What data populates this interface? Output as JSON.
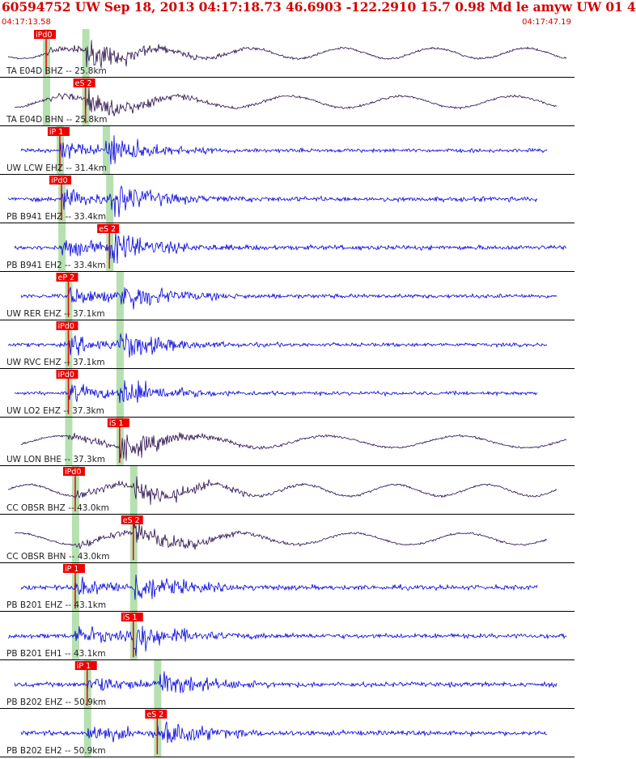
{
  "header": {
    "title": "60594752 UW Sep 18, 2013 04:17:18.73   46.6903 -122.2910 15.7 0.98 Md le amyw UW 01   4",
    "start_time": "04:17:13.58",
    "end_time": "04:17:47.19",
    "title_color": "#d40000"
  },
  "chart_data": {
    "type": "line",
    "x_range": [
      "04:17:13.58",
      "04:17:47.19"
    ],
    "colors": {
      "broadband": "#2a0f4e",
      "short_period": "#0000dd",
      "pick": "#ee0000",
      "window": "#b6e0b0",
      "separator": "#000000"
    },
    "traces": [
      {
        "label": "TA E04D BHZ -- 25.8km",
        "station": "E04D",
        "channel": "BHZ",
        "distance_km": 25.8,
        "kind": "broadband",
        "pick": "iPd0",
        "p_time": 2.7,
        "s_time": 5.0,
        "amp": 0.8
      },
      {
        "label": "TA E04D BHN -- 25.8km",
        "station": "E04D",
        "channel": "BHN",
        "distance_km": 25.8,
        "kind": "broadband",
        "pick": "eS 2",
        "p_time": 2.7,
        "s_time": 5.0,
        "amp": 0.9
      },
      {
        "label": "UW LCW EHZ -- 31.4km",
        "station": "LCW",
        "channel": "EHZ",
        "distance_km": 31.4,
        "kind": "short_period",
        "pick": "iP 1",
        "p_time": 3.5,
        "s_time": 6.2,
        "amp": 0.7
      },
      {
        "label": "PB B941 EHZ -- 33.4km",
        "station": "B941",
        "channel": "EHZ",
        "distance_km": 33.4,
        "kind": "short_period",
        "pick": "iPd0",
        "p_time": 3.6,
        "s_time": 6.4,
        "amp": 0.9
      },
      {
        "label": "PB B941 EH2 -- 33.4km",
        "station": "B941",
        "channel": "EH2",
        "distance_km": 33.4,
        "kind": "short_period",
        "pick": "eS 2",
        "p_time": 3.6,
        "s_time": 6.4,
        "amp": 0.9
      },
      {
        "label": "UW RER EHZ -- 37.1km",
        "station": "RER",
        "channel": "EHZ",
        "distance_km": 37.1,
        "kind": "short_period",
        "pick": "eP 2",
        "p_time": 4.0,
        "s_time": 7.0,
        "amp": 0.8
      },
      {
        "label": "UW RVC EHZ -- 37.1km",
        "station": "RVC",
        "channel": "EHZ",
        "distance_km": 37.1,
        "kind": "short_period",
        "pick": "iPd0",
        "p_time": 4.0,
        "s_time": 7.0,
        "amp": 0.7
      },
      {
        "label": "UW LO2 EHZ -- 37.3km",
        "station": "LO2",
        "channel": "EHZ",
        "distance_km": 37.3,
        "kind": "short_period",
        "pick": "iPd0",
        "p_time": 4.0,
        "s_time": 7.0,
        "amp": 0.7
      },
      {
        "label": "UW LON BHE -- 37.3km",
        "station": "LON",
        "channel": "BHE",
        "distance_km": 37.3,
        "kind": "broadband",
        "pick": "iS 1",
        "p_time": 4.0,
        "s_time": 7.0,
        "amp": 0.9
      },
      {
        "label": "CC OBSR BHZ -- 43.0km",
        "station": "OBSR",
        "channel": "BHZ",
        "distance_km": 43.0,
        "kind": "broadband",
        "pick": "iPd0",
        "p_time": 4.4,
        "s_time": 7.8,
        "amp": 0.9
      },
      {
        "label": "CC OBSR BHN -- 43.0km",
        "station": "OBSR",
        "channel": "BHN",
        "distance_km": 43.0,
        "kind": "broadband",
        "pick": "eS 2",
        "p_time": 4.4,
        "s_time": 7.8,
        "amp": 0.9
      },
      {
        "label": "PB B201 EHZ -- 43.1km",
        "station": "B201",
        "channel": "EHZ",
        "distance_km": 43.1,
        "kind": "short_period",
        "pick": "iP 1",
        "p_time": 4.4,
        "s_time": 7.8,
        "amp": 0.9
      },
      {
        "label": "PB B201 EH1 -- 43.1km",
        "station": "B201",
        "channel": "EH1",
        "distance_km": 43.1,
        "kind": "short_period",
        "pick": "iS 1",
        "p_time": 4.4,
        "s_time": 7.8,
        "amp": 0.9
      },
      {
        "label": "PB B202 EHZ -- 50.9km",
        "station": "B202",
        "channel": "EHZ",
        "distance_km": 50.9,
        "kind": "short_period",
        "pick": "iP 1",
        "p_time": 5.1,
        "s_time": 9.2,
        "amp": 0.9
      },
      {
        "label": "PB B202 EH2 -- 50.9km",
        "station": "B202",
        "channel": "EH2",
        "distance_km": 50.9,
        "kind": "short_period",
        "pick": "eS 2",
        "p_time": 5.1,
        "s_time": 9.2,
        "amp": 0.9
      }
    ]
  }
}
